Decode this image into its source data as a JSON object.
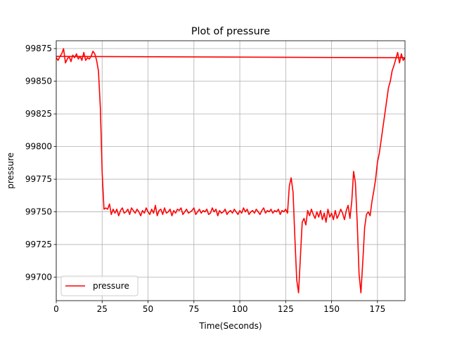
{
  "chart_data": {
    "type": "line",
    "title": "Plot of pressure",
    "xlabel": "Time(Seconds)",
    "ylabel": "pressure",
    "xlim": [
      0,
      190
    ],
    "ylim": [
      99682,
      99881
    ],
    "xticks": [
      0,
      25,
      50,
      75,
      100,
      125,
      150,
      175
    ],
    "yticks": [
      99700,
      99725,
      99750,
      99775,
      99800,
      99825,
      99850,
      99875
    ],
    "grid": true,
    "legend": {
      "placement": "lower-left",
      "entries": [
        "pressure"
      ]
    },
    "series": [
      {
        "name": "pressure",
        "color": "#ff0000",
        "x": [
          0,
          1,
          2,
          3,
          4,
          5,
          6,
          7,
          8,
          9,
          10,
          11,
          12,
          13,
          14,
          15,
          16,
          17,
          18,
          19,
          20,
          21,
          22,
          23,
          24,
          25,
          26,
          27,
          28,
          29,
          30,
          31,
          32,
          33,
          34,
          35,
          36,
          37,
          38,
          39,
          40,
          41,
          42,
          43,
          44,
          45,
          46,
          47,
          48,
          49,
          50,
          51,
          52,
          53,
          54,
          55,
          56,
          57,
          58,
          59,
          60,
          61,
          62,
          63,
          64,
          65,
          66,
          67,
          68,
          69,
          70,
          71,
          72,
          73,
          74,
          75,
          76,
          77,
          78,
          79,
          80,
          81,
          82,
          83,
          84,
          85,
          86,
          87,
          88,
          89,
          90,
          91,
          92,
          93,
          94,
          95,
          96,
          97,
          98,
          99,
          100,
          101,
          102,
          103,
          104,
          105,
          106,
          107,
          108,
          109,
          110,
          111,
          112,
          113,
          114,
          115,
          116,
          117,
          118,
          119,
          120,
          121,
          122,
          123,
          124,
          125,
          126,
          127,
          128,
          129,
          130,
          131,
          132,
          133,
          134,
          135,
          136,
          137,
          138,
          139,
          140,
          141,
          142,
          143,
          144,
          145,
          146,
          147,
          148,
          149,
          150,
          151,
          152,
          153,
          154,
          155,
          156,
          157,
          158,
          159,
          160,
          161,
          162,
          163,
          164,
          165,
          166,
          167,
          168,
          169,
          170,
          171,
          172,
          173,
          174,
          175,
          176,
          177,
          178,
          179,
          180,
          181,
          182,
          183,
          184,
          185,
          186,
          187,
          188,
          189,
          190,
          0
        ],
        "values": [
          99868,
          99866,
          99869,
          99871,
          99875,
          99864,
          99867,
          99869,
          99865,
          99870,
          99868,
          99871,
          99867,
          99869,
          99866,
          99872,
          99866,
          99868,
          99867,
          99869,
          99873,
          99871,
          99866,
          99858,
          99830,
          99780,
          99752,
          99753,
          99752,
          99756,
          99748,
          99752,
          99749,
          99752,
          99747,
          99751,
          99753,
          99749,
          99750,
          99752,
          99748,
          99753,
          99751,
          99749,
          99752,
          99750,
          99747,
          99751,
          99749,
          99753,
          99750,
          99748,
          99752,
          99749,
          99755,
          99747,
          99751,
          99752,
          99748,
          99753,
          99749,
          99750,
          99752,
          99747,
          99751,
          99749,
          99752,
          99751,
          99753,
          99748,
          99750,
          99752,
          99749,
          99750,
          99751,
          99753,
          99748,
          99750,
          99752,
          99749,
          99751,
          99750,
          99752,
          99748,
          99749,
          99753,
          99750,
          99752,
          99747,
          99751,
          99749,
          99750,
          99752,
          99748,
          99750,
          99751,
          99749,
          99752,
          99750,
          99748,
          99751,
          99749,
          99753,
          99750,
          99752,
          99748,
          99750,
          99751,
          99749,
          99752,
          99750,
          99748,
          99751,
          99753,
          99749,
          99751,
          99750,
          99752,
          99749,
          99751,
          99750,
          99752,
          99748,
          99751,
          99750,
          99752,
          99749,
          99770,
          99776,
          99765,
          99730,
          99698,
          99688,
          99715,
          99742,
          99745,
          99740,
          99751,
          99747,
          99752,
          99748,
          99745,
          99750,
          99746,
          99751,
          99744,
          99749,
          99742,
          99752,
          99746,
          99749,
          99744,
          99751,
          99745,
          99748,
          99752,
          99749,
          99744,
          99751,
          99755,
          99745,
          99758,
          99781,
          99772,
          99741,
          99702,
          99688,
          99712,
          99738,
          99748,
          99750,
          99747,
          99758,
          99766,
          99775,
          99788,
          99795,
          99805,
          99815,
          99825,
          99835,
          99845,
          99850,
          99858,
          99862,
          99867,
          99872,
          99864,
          99871,
          99866,
          99868,
          99869
        ]
      }
    ]
  }
}
